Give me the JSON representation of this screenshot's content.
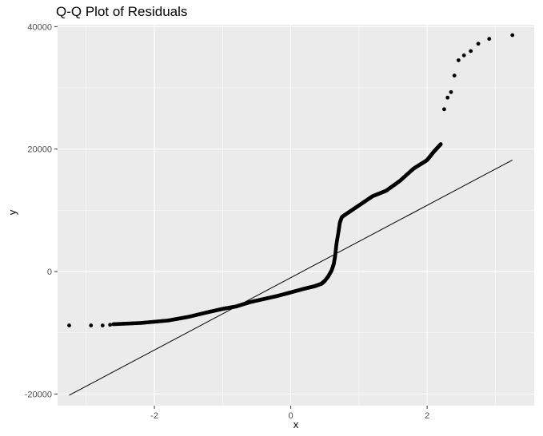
{
  "chart_data": {
    "type": "scatter",
    "title": "Q-Q Plot of Residuals",
    "xlabel": "x",
    "ylabel": "y",
    "xlim": [
      -3.42,
      3.57
    ],
    "ylim": [
      -21900,
      40300
    ],
    "x_ticks": [
      -2,
      0,
      2
    ],
    "x_tick_labels": [
      "-2",
      "0",
      "2"
    ],
    "y_ticks": [
      -20000,
      0,
      20000,
      40000
    ],
    "y_tick_labels": [
      "-20000",
      "0",
      "20000",
      "40000"
    ],
    "grid": true,
    "legend": "none",
    "colors": {
      "panel": "#ebebeb",
      "grid_major": "#ffffff",
      "points": "#000000",
      "line": "#000000"
    },
    "reference_line": {
      "x": [
        -3.25,
        3.25
      ],
      "y": [
        -20200,
        18200
      ]
    },
    "segments": [
      {
        "x": [
          -2.6,
          -2.2,
          -1.8,
          -1.5,
          -1.2,
          -1.0,
          -0.8,
          -0.6,
          -0.4,
          -0.2,
          0.0,
          0.2,
          0.35,
          0.45,
          0.5
        ],
        "y": [
          -8600,
          -8400,
          -8000,
          -7400,
          -6600,
          -6100,
          -5700,
          -5000,
          -4500,
          -4000,
          -3400,
          -2800,
          -2400,
          -2000,
          -1500
        ],
        "count": 260
      },
      {
        "x": [
          0.5,
          0.55,
          0.6,
          0.63,
          0.65,
          0.67,
          0.7,
          0.72,
          0.75,
          0.8
        ],
        "y": [
          -1500,
          -800,
          200,
          1200,
          2500,
          4500,
          6500,
          8000,
          8900,
          9300
        ],
        "count": 70
      },
      {
        "x": [
          0.8,
          1.0,
          1.2,
          1.4,
          1.6,
          1.8,
          2.0,
          2.1,
          2.2
        ],
        "y": [
          9300,
          10800,
          12300,
          13200,
          14800,
          16800,
          18200,
          19600,
          20800
        ],
        "count": 170
      }
    ],
    "points": [
      {
        "x": -3.25,
        "y": -8800
      },
      {
        "x": -2.93,
        "y": -8800
      },
      {
        "x": -2.76,
        "y": -8800
      },
      {
        "x": -2.65,
        "y": -8700
      },
      {
        "x": 2.25,
        "y": 26500
      },
      {
        "x": 2.3,
        "y": 28400
      },
      {
        "x": 2.35,
        "y": 29300
      },
      {
        "x": 2.4,
        "y": 32000
      },
      {
        "x": 2.46,
        "y": 34500
      },
      {
        "x": 2.54,
        "y": 35300
      },
      {
        "x": 2.64,
        "y": 36000
      },
      {
        "x": 2.75,
        "y": 37200
      },
      {
        "x": 2.91,
        "y": 38000
      },
      {
        "x": 3.25,
        "y": 38600
      }
    ]
  }
}
